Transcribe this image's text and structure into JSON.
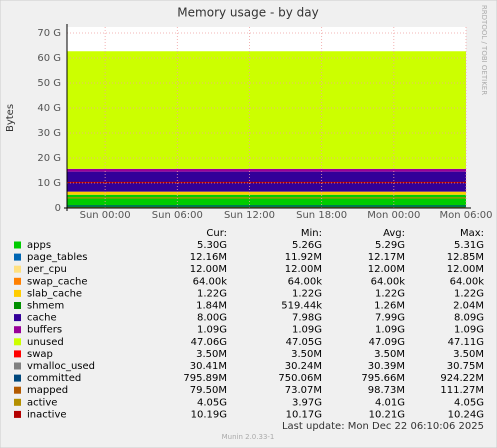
{
  "chart_data": {
    "type": "area",
    "title": "Memory usage - by day",
    "ylabel": "Bytes",
    "side_text": "RRDTOOL / TOBI OETIKER",
    "x": [
      -3.17,
      30
    ],
    "xlim": [
      -3.17,
      30
    ],
    "xticks": [
      {
        "value": 0,
        "label": "Sun 00:00"
      },
      {
        "value": 6,
        "label": "Sun 06:00"
      },
      {
        "value": 12,
        "label": "Sun 12:00"
      },
      {
        "value": 18,
        "label": "Sun 18:00"
      },
      {
        "value": 24,
        "label": "Mon 00:00"
      },
      {
        "value": 30,
        "label": "Mon 06:00"
      }
    ],
    "ylim": [
      0,
      72.4
    ],
    "yticks": [
      0,
      {
        "value": 10,
        "label": "10 G"
      },
      {
        "value": 20,
        "label": "20 G"
      },
      {
        "value": 30,
        "label": "30 G"
      },
      {
        "value": 40,
        "label": "40 G"
      },
      {
        "value": 50,
        "label": "50 G"
      },
      {
        "value": 60,
        "label": "60 G"
      },
      {
        "value": 70,
        "label": "70 G"
      }
    ],
    "grid": true,
    "series": [
      {
        "name": "apps",
        "color": "#00cc00",
        "kind": "area",
        "values": [
          5.3,
          5.3
        ]
      },
      {
        "name": "page_tables",
        "color": "#0066b3",
        "kind": "area",
        "values": [
          0.01216,
          0.01216
        ]
      },
      {
        "name": "per_cpu",
        "color": "#ffe080",
        "kind": "area",
        "values": [
          0.012,
          0.012
        ]
      },
      {
        "name": "swap_cache",
        "color": "#ff8000",
        "kind": "area",
        "values": [
          6.4e-05,
          6.4e-05
        ]
      },
      {
        "name": "slab_cache",
        "color": "#ffcc00",
        "kind": "area",
        "values": [
          1.22,
          1.22
        ]
      },
      {
        "name": "shmem",
        "color": "#008f00",
        "kind": "area",
        "values": [
          0.00184,
          0.00184
        ]
      },
      {
        "name": "cache",
        "color": "#330099",
        "kind": "area",
        "values": [
          8.0,
          8.0
        ]
      },
      {
        "name": "buffers",
        "color": "#990099",
        "kind": "area",
        "values": [
          1.09,
          1.09
        ]
      },
      {
        "name": "unused",
        "color": "#ccff00",
        "kind": "area",
        "values": [
          47.06,
          47.06
        ]
      },
      {
        "name": "swap",
        "color": "#ff0000",
        "kind": "area",
        "values": [
          0.0035,
          0.0035
        ]
      },
      {
        "name": "vmalloc_used",
        "color": "#808080",
        "kind": "line",
        "values": [
          0.0304,
          0.0304
        ]
      },
      {
        "name": "committed",
        "color": "#00487d",
        "kind": "line",
        "values": [
          0.796,
          0.796
        ]
      },
      {
        "name": "mapped",
        "color": "#b35a00",
        "kind": "line",
        "values": [
          0.0795,
          0.0795
        ]
      },
      {
        "name": "active",
        "color": "#b38f00",
        "kind": "line",
        "values": [
          4.05,
          4.05
        ]
      },
      {
        "name": "inactive",
        "color": "#b30000",
        "kind": "line",
        "values": [
          10.19,
          10.19
        ]
      }
    ]
  },
  "legend_table": {
    "columns": [
      "Cur:",
      "Min:",
      "Avg:",
      "Max:"
    ],
    "rows": [
      [
        "5.30G",
        "5.26G",
        "5.29G",
        "5.31G"
      ],
      [
        "12.16M",
        "11.92M",
        "12.17M",
        "12.85M"
      ],
      [
        "12.00M",
        "12.00M",
        "12.00M",
        "12.00M"
      ],
      [
        "64.00k",
        "64.00k",
        "64.00k",
        "64.00k"
      ],
      [
        "1.22G",
        "1.22G",
        "1.22G",
        "1.22G"
      ],
      [
        "1.84M",
        "519.44k",
        "1.26M",
        "2.04M"
      ],
      [
        "8.00G",
        "7.98G",
        "7.99G",
        "8.09G"
      ],
      [
        "1.09G",
        "1.09G",
        "1.09G",
        "1.09G"
      ],
      [
        "47.06G",
        "47.05G",
        "47.09G",
        "47.11G"
      ],
      [
        "3.50M",
        "3.50M",
        "3.50M",
        "3.50M"
      ],
      [
        "30.41M",
        "30.24M",
        "30.39M",
        "30.75M"
      ],
      [
        "795.89M",
        "750.06M",
        "795.66M",
        "924.22M"
      ],
      [
        "79.50M",
        "73.07M",
        "98.73M",
        "111.27M"
      ],
      [
        "4.05G",
        "3.97G",
        "4.01G",
        "4.05G"
      ],
      [
        "10.19G",
        "10.17G",
        "10.21G",
        "10.24G"
      ]
    ]
  },
  "footer": {
    "last_update": "Last update:  Mon Dec 22 06:10:06 2025",
    "version": "Munin 2.0.33-1"
  }
}
